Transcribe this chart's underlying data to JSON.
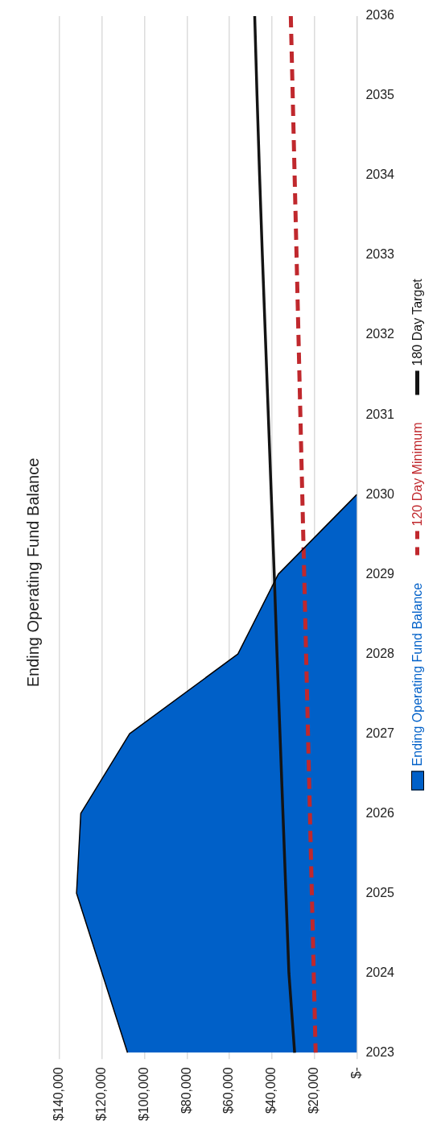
{
  "chart_data": {
    "type": "area",
    "title": "Ending Operating Fund Balance",
    "orientation": "horizontal",
    "categories": [
      "2036",
      "2035",
      "2034",
      "2033",
      "2032",
      "2031",
      "2030",
      "2029",
      "2028",
      "2027",
      "2026",
      "2025",
      "2024",
      "2023"
    ],
    "series": [
      {
        "name": "Ending Operating Fund Balance",
        "type": "area",
        "color": "#0060c8",
        "values": [
          null,
          null,
          null,
          null,
          null,
          null,
          0,
          37000,
          56000,
          107000,
          130000,
          132000,
          120000,
          108000
        ]
      },
      {
        "name": "120 Day Minimum",
        "type": "line",
        "color": "#c0282d",
        "line_style": "dashed",
        "values": [
          31100,
          30200,
          29300,
          28400,
          27500,
          26600,
          25700,
          24800,
          23900,
          23000,
          22100,
          21200,
          20300,
          19400
        ]
      },
      {
        "name": "180 Day Target",
        "type": "line",
        "color": "#141414",
        "line_style": "solid",
        "values": [
          48100,
          47000,
          45800,
          44500,
          43100,
          41700,
          40300,
          38900,
          37600,
          36200,
          34800,
          33400,
          32000,
          29300
        ]
      }
    ],
    "xlim": [
      140000,
      0
    ],
    "xticks": [
      {
        "value": 0,
        "label": "$-"
      },
      {
        "value": 20000,
        "label": "$20,000"
      },
      {
        "value": 40000,
        "label": "$40,000"
      },
      {
        "value": 60000,
        "label": "$60,000"
      },
      {
        "value": 80000,
        "label": "$80,000"
      },
      {
        "value": 100000,
        "label": "$100,000"
      },
      {
        "value": 120000,
        "label": "$120,000"
      },
      {
        "value": 140000,
        "label": "$140,000"
      }
    ],
    "grid": "x",
    "legend": "right",
    "marker": "none"
  }
}
